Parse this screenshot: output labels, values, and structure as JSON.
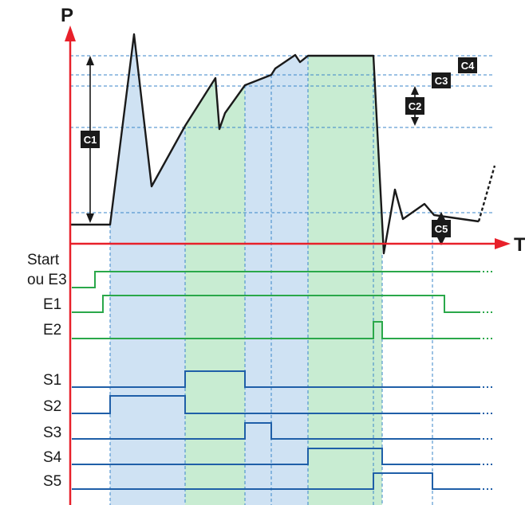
{
  "axes": {
    "y_label": "P",
    "x_label": "T"
  },
  "markers": {
    "c1": "C1",
    "c2": "C2",
    "c3": "C3",
    "c4": "C4",
    "c5": "C5"
  },
  "inputs": {
    "start_line1": "Start",
    "start_line2": "ou E3",
    "e1": "E1",
    "e2": "E2"
  },
  "outputs": {
    "s1": "S1",
    "s2": "S2",
    "s3": "S3",
    "s4": "S4",
    "s5": "S5"
  },
  "colors": {
    "axis": "#e8202a",
    "input_signal": "#2aa84a",
    "output_signal": "#1f5fa8",
    "zone_blue": "#cfe2f3",
    "zone_green": "#c8ecd2",
    "guide": "#3a86c8",
    "badge": "#1a1a1a"
  }
}
